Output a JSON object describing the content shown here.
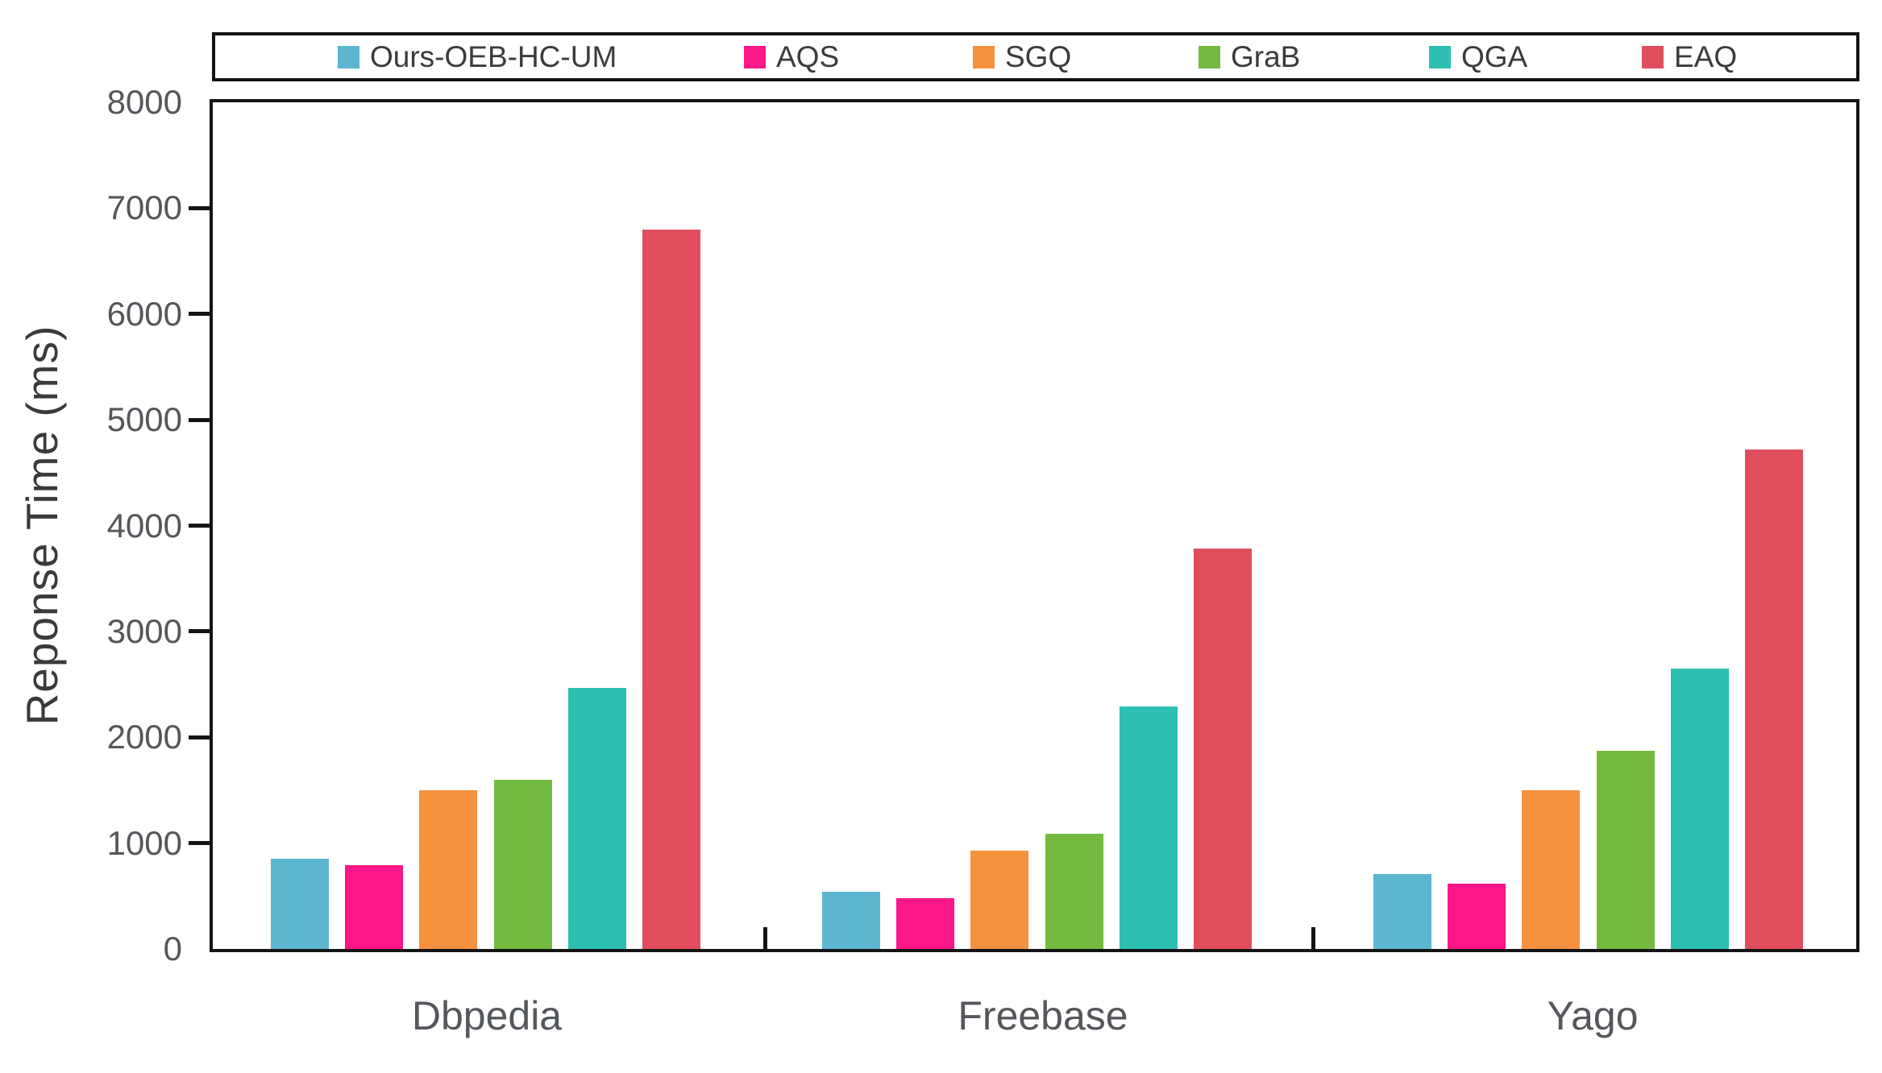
{
  "chart_data": {
    "type": "bar",
    "title": "",
    "xlabel": "",
    "ylabel": "Reponse Time (ms)",
    "ylim": [
      0,
      8000
    ],
    "yticks": [
      0,
      1000,
      2000,
      3000,
      4000,
      5000,
      6000,
      7000,
      8000
    ],
    "ytick_labels": [
      "0",
      "1000",
      "2000",
      "3000",
      "4000",
      "5000",
      "6000",
      "7000",
      "8000"
    ],
    "grid": false,
    "legend_position": "top",
    "categories": [
      "Dbpedia",
      "Freebase",
      "Yago"
    ],
    "series": [
      {
        "name": "Ours-OEB-HC-UM",
        "color": "#5CB6CF",
        "values": [
          850,
          540,
          710
        ]
      },
      {
        "name": "AQS",
        "color": "#FB1689",
        "values": [
          790,
          480,
          620
        ]
      },
      {
        "name": "SGQ",
        "color": "#F6913E",
        "values": [
          1500,
          930,
          1500
        ]
      },
      {
        "name": "GraB",
        "color": "#74BA40",
        "values": [
          1600,
          1090,
          1870
        ]
      },
      {
        "name": "QGA",
        "color": "#2DBFB1",
        "values": [
          2470,
          2290,
          2650
        ]
      },
      {
        "name": "EAQ",
        "color": "#E04E5E",
        "values": [
          6800,
          3780,
          4720
        ]
      }
    ],
    "axis_color": "#141414",
    "tick_label_color": "#54575b"
  }
}
